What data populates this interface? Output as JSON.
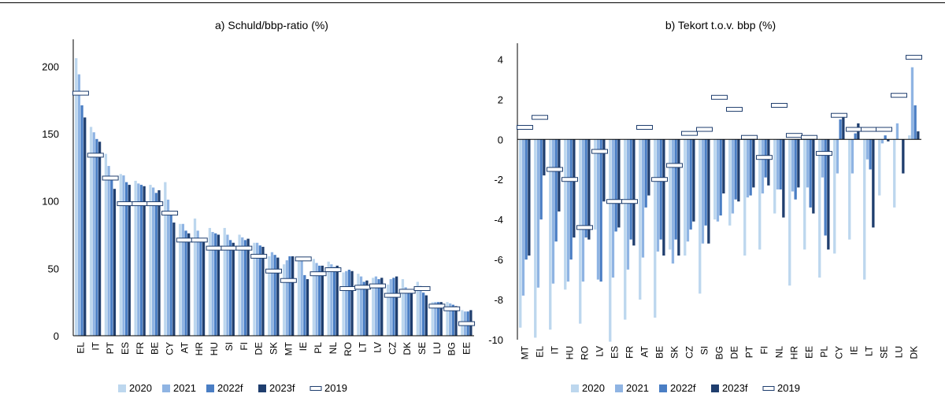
{
  "series_names": [
    "2020",
    "2021",
    "2022f",
    "2023f",
    "2019"
  ],
  "colors": {
    "2020": "#bdd7ee",
    "2021": "#8fb4e3",
    "2022f": "#4a7ec4",
    "2023f": "#1f3e6e",
    "marker_fill": "#ffffff",
    "marker_stroke": "#1f3e6e",
    "axis": "#000000"
  },
  "chart_data": [
    {
      "id": "a",
      "type": "bar",
      "title": "a) Schuld/bbp-ratio (%)",
      "xlabel": "",
      "ylabel": "",
      "ylim": [
        0,
        220
      ],
      "yticks": [
        0,
        50,
        100,
        150,
        200
      ],
      "legend": "bottom",
      "grid": false,
      "categories": [
        "EL",
        "IT",
        "PT",
        "ES",
        "FR",
        "BE",
        "CY",
        "AT",
        "HR",
        "HU",
        "SI",
        "FI",
        "DE",
        "SK",
        "MT",
        "IE",
        "PL",
        "NL",
        "RO",
        "LT",
        "LV",
        "CZ",
        "DK",
        "SE",
        "LU",
        "BG",
        "EE"
      ],
      "series": [
        {
          "name": "2020",
          "values": [
            206,
            155,
            135,
            120,
            115,
            112,
            114,
            83,
            87,
            80,
            80,
            75,
            69,
            59,
            53,
            58,
            57,
            55,
            47,
            46,
            43,
            38,
            42,
            40,
            25,
            25,
            19
          ]
        },
        {
          "name": "2021",
          "values": [
            194,
            151,
            126,
            119,
            113,
            110,
            101,
            83,
            78,
            77,
            75,
            73,
            69,
            62,
            56,
            57,
            54,
            53,
            48,
            44,
            44,
            42,
            36,
            37,
            25,
            24,
            18
          ]
        },
        {
          "name": "2022f",
          "values": [
            171,
            146,
            118,
            114,
            112,
            106,
            92,
            78,
            72,
            76,
            71,
            71,
            67,
            60,
            59,
            45,
            52,
            51,
            49,
            40,
            42,
            43,
            32,
            32,
            25,
            23,
            18
          ]
        },
        {
          "name": "2023f",
          "values": [
            162,
            144,
            109,
            112,
            111,
            108,
            84,
            76,
            70,
            75,
            69,
            72,
            66,
            58,
            59,
            42,
            52,
            52,
            48,
            41,
            43,
            44,
            32,
            30,
            25,
            22,
            19
          ]
        },
        {
          "name": "2019",
          "values": [
            180,
            134,
            117,
            98,
            98,
            98,
            91,
            71,
            71,
            65,
            65,
            65,
            59,
            48,
            41,
            57,
            46,
            49,
            35,
            36,
            37,
            30,
            33,
            35,
            22,
            20,
            9
          ]
        }
      ]
    },
    {
      "id": "b",
      "type": "bar",
      "title": "b) Tekort t.o.v. bbp (%)",
      "xlabel": "",
      "ylabel": "",
      "ylim": [
        -10,
        4.8
      ],
      "yticks": [
        4,
        2,
        0,
        -2,
        -4,
        -6,
        -8,
        -10
      ],
      "legend": "bottom",
      "grid": false,
      "categories": [
        "MT",
        "EL",
        "IT",
        "HU",
        "RO",
        "LV",
        "ES",
        "FR",
        "AT",
        "BE",
        "SK",
        "CZ",
        "SI",
        "BG",
        "DE",
        "PT",
        "FI",
        "NL",
        "HR",
        "EE",
        "PL",
        "CY",
        "IE",
        "LT",
        "SE",
        "LU",
        "DK"
      ],
      "series": [
        {
          "name": "2020",
          "values": [
            -9.4,
            -9.9,
            -9.5,
            -7.5,
            -9.2,
            -4.5,
            -10.1,
            -9.0,
            -8.0,
            -8.9,
            -5.5,
            -5.8,
            -7.7,
            -4.0,
            -4.3,
            -5.8,
            -5.5,
            -3.7,
            -7.3,
            -5.5,
            -6.9,
            -5.7,
            -5.0,
            -7.0,
            -2.8,
            -3.4,
            0.2
          ]
        },
        {
          "name": "2021",
          "values": [
            -7.8,
            -7.4,
            -7.2,
            -7.1,
            -7.1,
            -7.0,
            -6.9,
            -6.5,
            -5.9,
            -5.6,
            -6.2,
            -5.1,
            -5.2,
            -4.1,
            -3.7,
            -2.9,
            -2.7,
            -2.5,
            -2.6,
            -2.4,
            -1.9,
            -1.7,
            -1.7,
            -1.0,
            -0.2,
            0.8,
            3.6
          ]
        },
        {
          "name": "2022f",
          "values": [
            -6.0,
            -4.0,
            -5.1,
            -6.0,
            -4.9,
            -7.1,
            -4.6,
            -5.0,
            -3.4,
            -5.0,
            -5.0,
            -4.5,
            -4.3,
            -3.8,
            -3.0,
            -2.8,
            -1.9,
            -2.5,
            -3.0,
            -3.4,
            -4.8,
            1.0,
            0.3,
            -1.5,
            0.2,
            0.0,
            1.7
          ]
        },
        {
          "name": "2023f",
          "values": [
            -5.8,
            -1.8,
            -3.6,
            -4.9,
            -5.0,
            -3.1,
            -4.4,
            -5.3,
            -2.8,
            -5.8,
            -5.8,
            -4.1,
            -5.2,
            -2.7,
            -3.1,
            -2.4,
            -2.3,
            -3.9,
            -2.4,
            -3.7,
            -5.5,
            1.1,
            0.8,
            -4.4,
            -0.1,
            -1.7,
            0.4
          ]
        },
        {
          "name": "2019",
          "values": [
            0.6,
            1.1,
            -1.5,
            -2.0,
            -4.4,
            -0.6,
            -3.1,
            -3.1,
            0.6,
            -2.0,
            -1.3,
            0.3,
            0.5,
            2.1,
            1.5,
            0.1,
            -0.9,
            1.7,
            0.2,
            0.1,
            -0.7,
            1.2,
            0.5,
            0.5,
            0.5,
            2.2,
            4.1
          ]
        }
      ]
    }
  ]
}
